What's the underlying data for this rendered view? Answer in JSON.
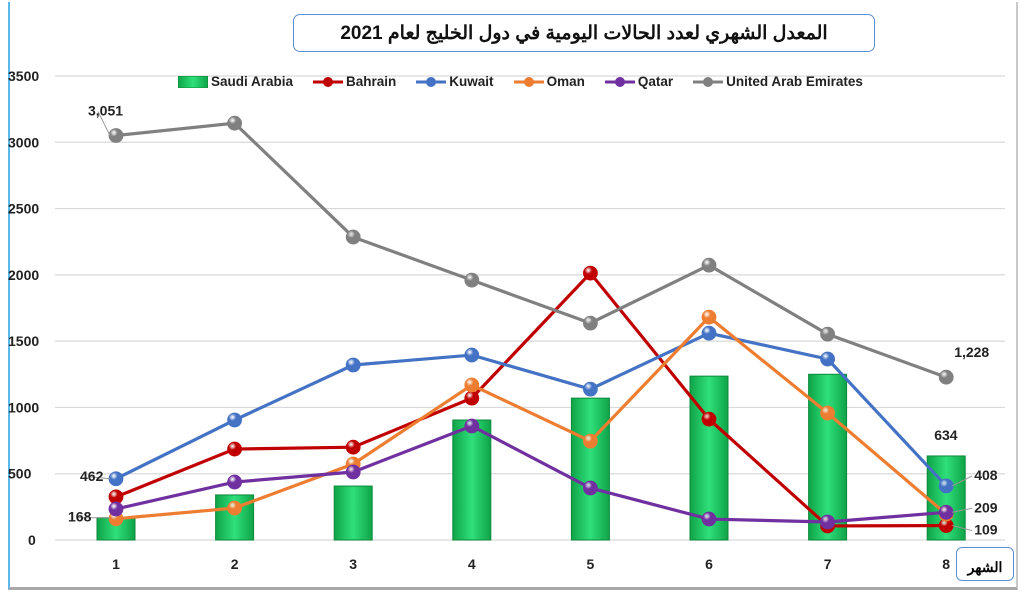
{
  "chart_data": {
    "type": "bar+line",
    "title": "المعدل الشهري لعدد الحالات اليومية في دول الخليج لعام 2021",
    "xlabel": "الشهر",
    "ylabel": "",
    "ylim": [
      0,
      3500
    ],
    "yticks": [
      0,
      500,
      1000,
      1500,
      2000,
      2500,
      3000,
      3500
    ],
    "grid": true,
    "legend_position": "top",
    "categories": [
      "1",
      "2",
      "3",
      "4",
      "5",
      "6",
      "7",
      "8"
    ],
    "series": [
      {
        "name": "Saudi Arabia",
        "kind": "bar",
        "color": "#1fc45f",
        "values": [
          168,
          340,
          407,
          905,
          1070,
          1236,
          1250,
          634
        ]
      },
      {
        "name": "Bahrain",
        "kind": "line",
        "color": "#c00000",
        "values": [
          325,
          686,
          700,
          1070,
          2013,
          912,
          106,
          109
        ]
      },
      {
        "name": "Kuwait",
        "kind": "line",
        "color": "#4472c4",
        "values": [
          462,
          905,
          1320,
          1395,
          1138,
          1560,
          1365,
          408
        ]
      },
      {
        "name": "Oman",
        "kind": "line",
        "color": "#ed7d31",
        "values": [
          160,
          241,
          573,
          1169,
          746,
          1681,
          958,
          195
        ]
      },
      {
        "name": "Qatar",
        "kind": "line",
        "color": "#7030a0",
        "values": [
          234,
          437,
          513,
          860,
          392,
          158,
          136,
          209
        ]
      },
      {
        "name": "United Arab Emirates",
        "kind": "line",
        "color": "#808080",
        "values": [
          3051,
          3144,
          2285,
          1960,
          1636,
          2073,
          1553,
          1228
        ]
      }
    ],
    "data_labels": [
      {
        "series": "United Arab Emirates",
        "category": "1",
        "text": "3,051"
      },
      {
        "series": "United Arab Emirates",
        "category": "8",
        "text": "1,228"
      },
      {
        "series": "Kuwait",
        "category": "1",
        "text": "462"
      },
      {
        "series": "Saudi Arabia",
        "category": "1",
        "text": "168"
      },
      {
        "series": "Saudi Arabia",
        "category": "8",
        "text": "634"
      },
      {
        "series": "Kuwait",
        "category": "8",
        "text": "408"
      },
      {
        "series": "Qatar",
        "category": "8",
        "text": "209"
      },
      {
        "series": "Bahrain",
        "category": "8",
        "text": "109"
      }
    ]
  }
}
